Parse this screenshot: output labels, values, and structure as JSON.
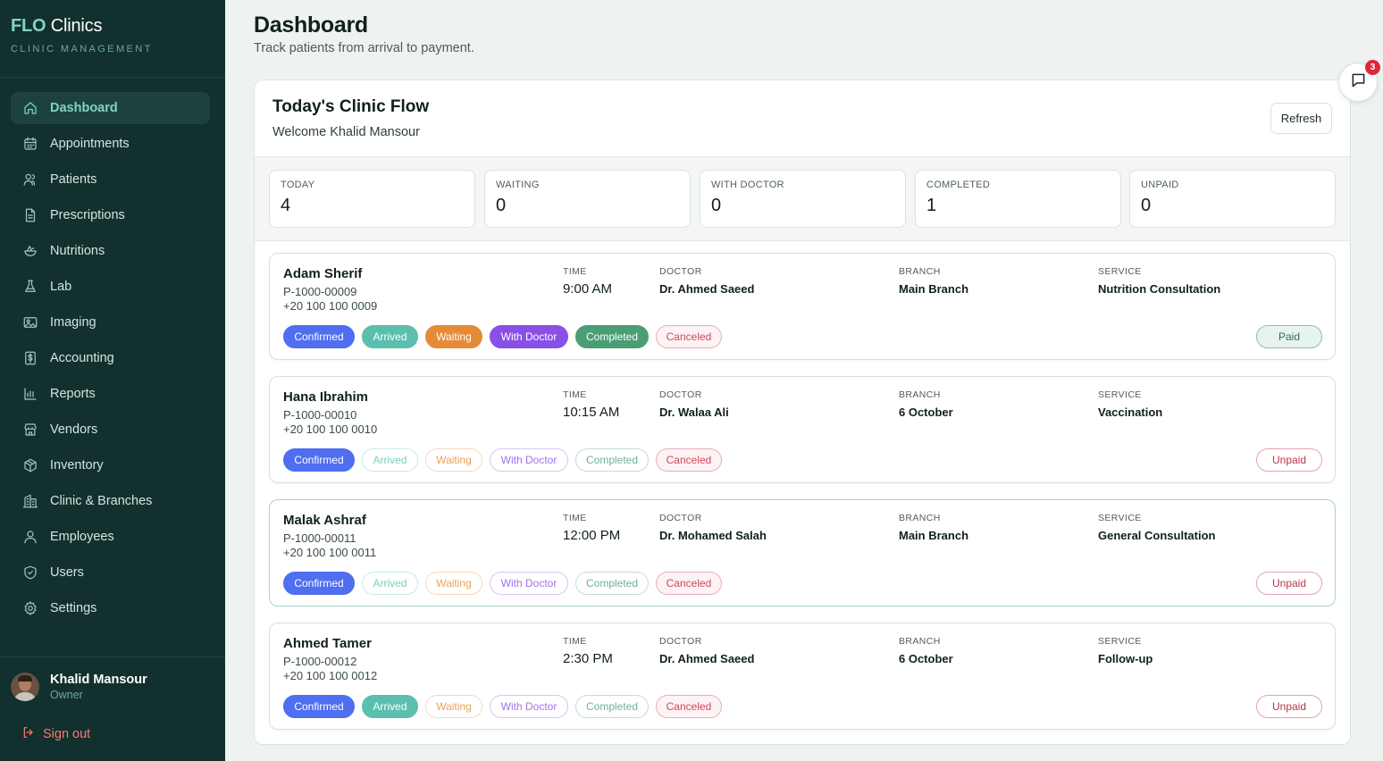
{
  "brand": {
    "logo_bold": "FLO",
    "logo_rest": " Clinics",
    "subtitle": "CLINIC MANAGEMENT"
  },
  "nav": [
    {
      "label": "Dashboard",
      "icon": "home-icon",
      "active": true
    },
    {
      "label": "Appointments",
      "icon": "calendar-icon"
    },
    {
      "label": "Patients",
      "icon": "users-icon"
    },
    {
      "label": "Prescriptions",
      "icon": "document-icon"
    },
    {
      "label": "Nutritions",
      "icon": "salad-icon"
    },
    {
      "label": "Lab",
      "icon": "flask-icon"
    },
    {
      "label": "Imaging",
      "icon": "image-icon"
    },
    {
      "label": "Accounting",
      "icon": "dollar-icon"
    },
    {
      "label": "Reports",
      "icon": "bar-chart-icon"
    },
    {
      "label": "Vendors",
      "icon": "store-icon"
    },
    {
      "label": "Inventory",
      "icon": "package-icon"
    },
    {
      "label": "Clinic & Branches",
      "icon": "building-icon"
    },
    {
      "label": "Employees",
      "icon": "user-icon"
    },
    {
      "label": "Users",
      "icon": "shield-icon"
    },
    {
      "label": "Settings",
      "icon": "gear-icon"
    }
  ],
  "user": {
    "name": "Khalid Mansour",
    "role": "Owner"
  },
  "signout_label": "Sign out",
  "header": {
    "title": "Dashboard",
    "subtitle": "Track patients from arrival to payment."
  },
  "panel": {
    "title": "Today's Clinic Flow",
    "welcome": "Welcome Khalid Mansour",
    "refresh_label": "Refresh"
  },
  "stats": [
    {
      "label": "TODAY",
      "value": "4"
    },
    {
      "label": "WAITING",
      "value": "0"
    },
    {
      "label": "WITH DOCTOR",
      "value": "0"
    },
    {
      "label": "COMPLETED",
      "value": "1"
    },
    {
      "label": "UNPAID",
      "value": "0"
    }
  ],
  "column_labels": {
    "time": "TIME",
    "doctor": "DOCTOR",
    "branch": "BRANCH",
    "service": "SERVICE"
  },
  "status_labels": [
    "Confirmed",
    "Arrived",
    "Waiting",
    "With Doctor",
    "Completed",
    "Canceled"
  ],
  "status_colors": {
    "confirmed": "#4f6ef0",
    "arrived": "#5bbfae",
    "waiting": "#e58a37",
    "withdoctor": "#8a4fe6",
    "completed": "#4a9d74",
    "canceled": "#c94a5c"
  },
  "appointments": [
    {
      "name": "Adam Sherif",
      "pid": "P-1000-00009",
      "phone": "+20 100 100 0009",
      "time": "9:00 AM",
      "doctor": "Dr. Ahmed Saeed",
      "branch": "Main Branch",
      "service": "Nutrition Consultation",
      "active_statuses": [
        "Confirmed",
        "Arrived",
        "Waiting",
        "With Doctor",
        "Completed"
      ],
      "payment": "Paid"
    },
    {
      "name": "Hana Ibrahim",
      "pid": "P-1000-00010",
      "phone": "+20 100 100 0010",
      "time": "10:15 AM",
      "doctor": "Dr. Walaa Ali",
      "branch": "6 October",
      "service": "Vaccination",
      "active_statuses": [
        "Confirmed"
      ],
      "payment": "Unpaid"
    },
    {
      "name": "Malak Ashraf",
      "pid": "P-1000-00011",
      "phone": "+20 100 100 0011",
      "time": "12:00 PM",
      "doctor": "Dr. Mohamed Salah",
      "branch": "Main Branch",
      "service": "General Consultation",
      "active_statuses": [
        "Confirmed"
      ],
      "payment": "Unpaid",
      "highlighted": true
    },
    {
      "name": "Ahmed Tamer",
      "pid": "P-1000-00012",
      "phone": "+20 100 100 0012",
      "time": "2:30 PM",
      "doctor": "Dr. Ahmed Saeed",
      "branch": "6 October",
      "service": "Follow-up",
      "active_statuses": [
        "Confirmed",
        "Arrived"
      ],
      "payment": "Unpaid"
    }
  ],
  "chat": {
    "icon": "chat-icon",
    "badge": "3"
  }
}
